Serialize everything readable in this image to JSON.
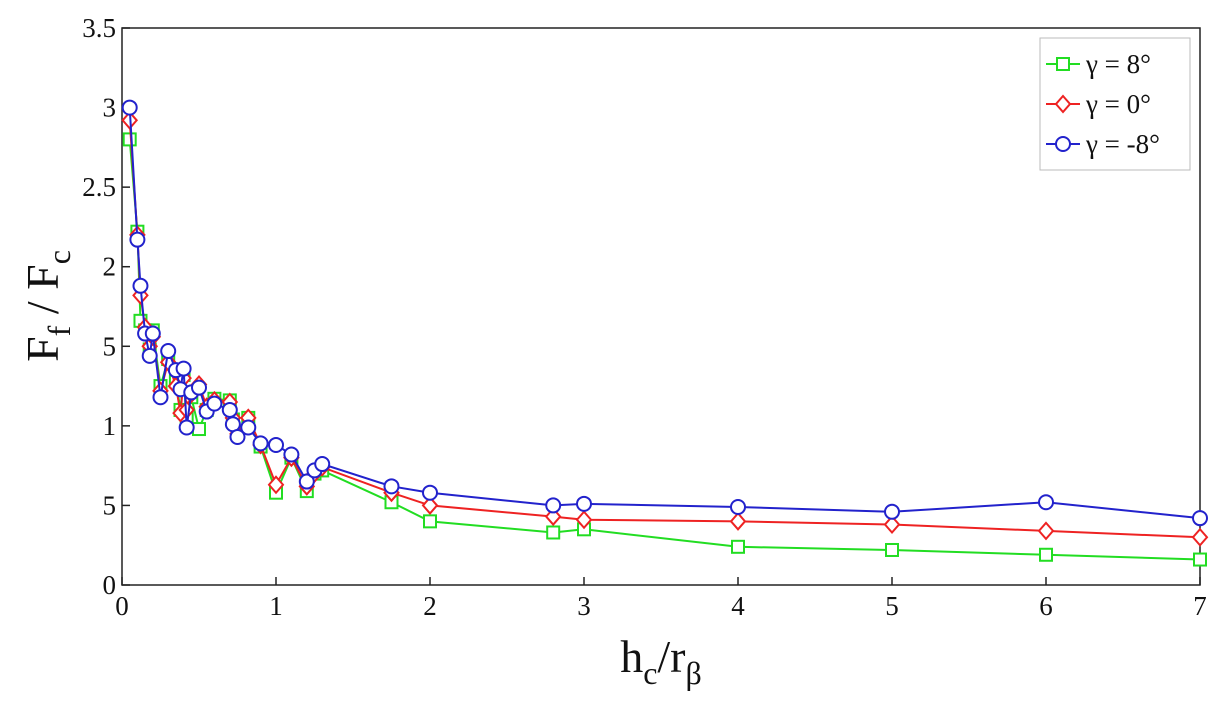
{
  "chart_data": {
    "type": "line",
    "ylabel_parts": [
      "F",
      "f",
      " / F",
      "c"
    ],
    "xlabel_parts": [
      "h",
      "c",
      "/r",
      "β"
    ],
    "x": [
      0.05,
      0.1,
      0.12,
      0.15,
      0.18,
      0.2,
      0.25,
      0.3,
      0.35,
      0.38,
      0.4,
      0.42,
      0.45,
      0.5,
      0.55,
      0.6,
      0.7,
      0.72,
      0.75,
      0.82,
      0.9,
      1.0,
      1.1,
      1.2,
      1.25,
      1.3,
      1.75,
      2,
      2.8,
      3,
      4,
      5,
      6,
      7
    ],
    "series": [
      {
        "name": "γ = 8°",
        "color": "#22dd22",
        "marker": "square",
        "values": [
          2.8,
          2.22,
          1.66,
          1.6,
          1.48,
          1.6,
          1.25,
          1.42,
          1.28,
          1.1,
          1.32,
          1.05,
          1.18,
          0.98,
          1.1,
          1.17,
          1.16,
          1.04,
          0.96,
          1.05,
          0.87,
          0.58,
          0.8,
          0.59,
          0.7,
          0.72,
          0.52,
          0.4,
          0.33,
          0.35,
          0.24,
          0.22,
          0.19,
          0.16
        ]
      },
      {
        "name": "γ = 0°",
        "color": "#ee2222",
        "marker": "diamond",
        "values": [
          2.92,
          2.2,
          1.82,
          1.62,
          1.5,
          1.56,
          1.22,
          1.4,
          1.25,
          1.08,
          1.3,
          1.1,
          1.2,
          1.26,
          1.12,
          1.16,
          1.15,
          1.05,
          0.95,
          1.05,
          0.88,
          0.63,
          0.8,
          0.62,
          0.7,
          0.74,
          0.58,
          0.5,
          0.43,
          0.41,
          0.4,
          0.38,
          0.34,
          0.3
        ]
      },
      {
        "name": "γ = -8°",
        "color": "#2222cc",
        "marker": "circle",
        "values": [
          3.0,
          2.17,
          1.88,
          1.58,
          1.44,
          1.58,
          1.18,
          1.47,
          1.35,
          1.23,
          1.36,
          0.99,
          1.21,
          1.24,
          1.09,
          1.14,
          1.1,
          1.01,
          0.93,
          0.99,
          0.89,
          0.88,
          0.82,
          0.65,
          0.72,
          0.76,
          0.62,
          0.58,
          0.5,
          0.51,
          0.49,
          0.46,
          0.52,
          0.42
        ]
      }
    ],
    "xlim": [
      0,
      7
    ],
    "xticks": [
      0,
      1,
      2,
      3,
      4,
      5,
      6,
      7
    ],
    "ylim": [
      0,
      3.5
    ],
    "yticks": [
      0,
      {
        "value": 0.5,
        "label": "5"
      },
      1,
      {
        "value": 1.5,
        "label": "5"
      },
      2,
      2.5,
      3,
      3.5
    ],
    "legend": "upper right"
  }
}
